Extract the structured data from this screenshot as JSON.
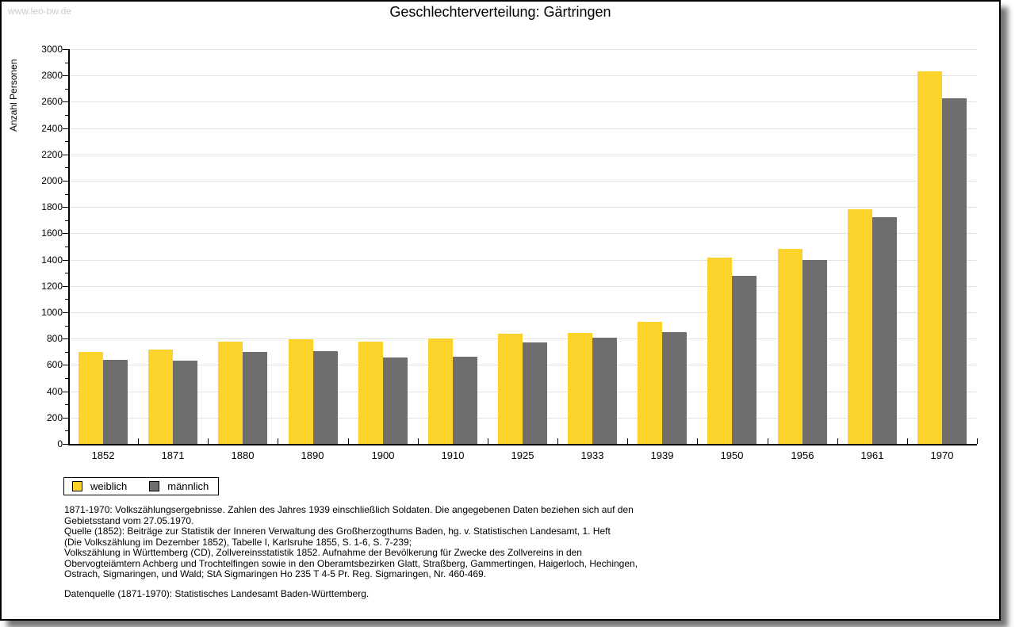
{
  "watermark": "www.leo-bw.de",
  "header": {
    "title": "Geschlechterverteilung: Gärtringen"
  },
  "chart_data": {
    "type": "bar",
    "title": "Geschlechterverteilung: Gärtringen",
    "xlabel": "",
    "ylabel": "Anzahl Personen",
    "ylim": [
      0,
      3000
    ],
    "ytick_step": 200,
    "yminor_step": 100,
    "grid": true,
    "legend_position": "bottom-left",
    "categories": [
      "1852",
      "1871",
      "1880",
      "1890",
      "1900",
      "1910",
      "1925",
      "1933",
      "1939",
      "1950",
      "1956",
      "1961",
      "1970"
    ],
    "series": [
      {
        "name": "weiblich",
        "color": "#FCD32B",
        "values": [
          700,
          715,
          780,
          795,
          780,
          800,
          840,
          845,
          925,
          1415,
          1480,
          1785,
          2830
        ]
      },
      {
        "name": "männlich",
        "color": "#6E6E6E",
        "values": [
          640,
          630,
          700,
          705,
          655,
          660,
          770,
          810,
          850,
          1275,
          1400,
          1720,
          2625
        ]
      }
    ]
  },
  "colors": {
    "female_bar": "#FCD32B",
    "male_bar": "#6E6E6E",
    "gridline": "#E2E2E2",
    "axis": "#000000",
    "watermark": "#CCCCCC"
  },
  "footnotes": {
    "lines": [
      "1871-1970: Volkszählungsergebnisse. Zahlen des Jahres 1939 einschließlich Soldaten. Die angegebenen Daten beziehen sich auf den",
      "Gebietsstand vom 27.05.1970.",
      "Quelle (1852): Beiträge zur Statistik der Inneren Verwaltung des Großherzogthums Baden, hg. v. Statistischen Landesamt, 1. Heft",
      "(Die Volkszählung im Dezember 1852), Tabelle I, Karlsruhe 1855, S. 1-6, S. 7-239;",
      "Volkszählung in Württemberg (CD), Zollvereinsstatistik 1852. Aufnahme der Bevölkerung für Zwecke des Zollvereins in den",
      "Obervogteiämtern Achberg und Trochtelfingen sowie in den Oberamtsbezirken Glatt, Straßberg, Gammertingen, Haigerloch, Hechingen,",
      "Ostrach, Sigmaringen, und Wald; StA Sigmaringen Ho 235 T 4-5 Pr. Reg. Sigmaringen, Nr. 460-469."
    ],
    "datasource": "Datenquelle (1871-1970): Statistisches Landesamt Baden-Württemberg."
  }
}
